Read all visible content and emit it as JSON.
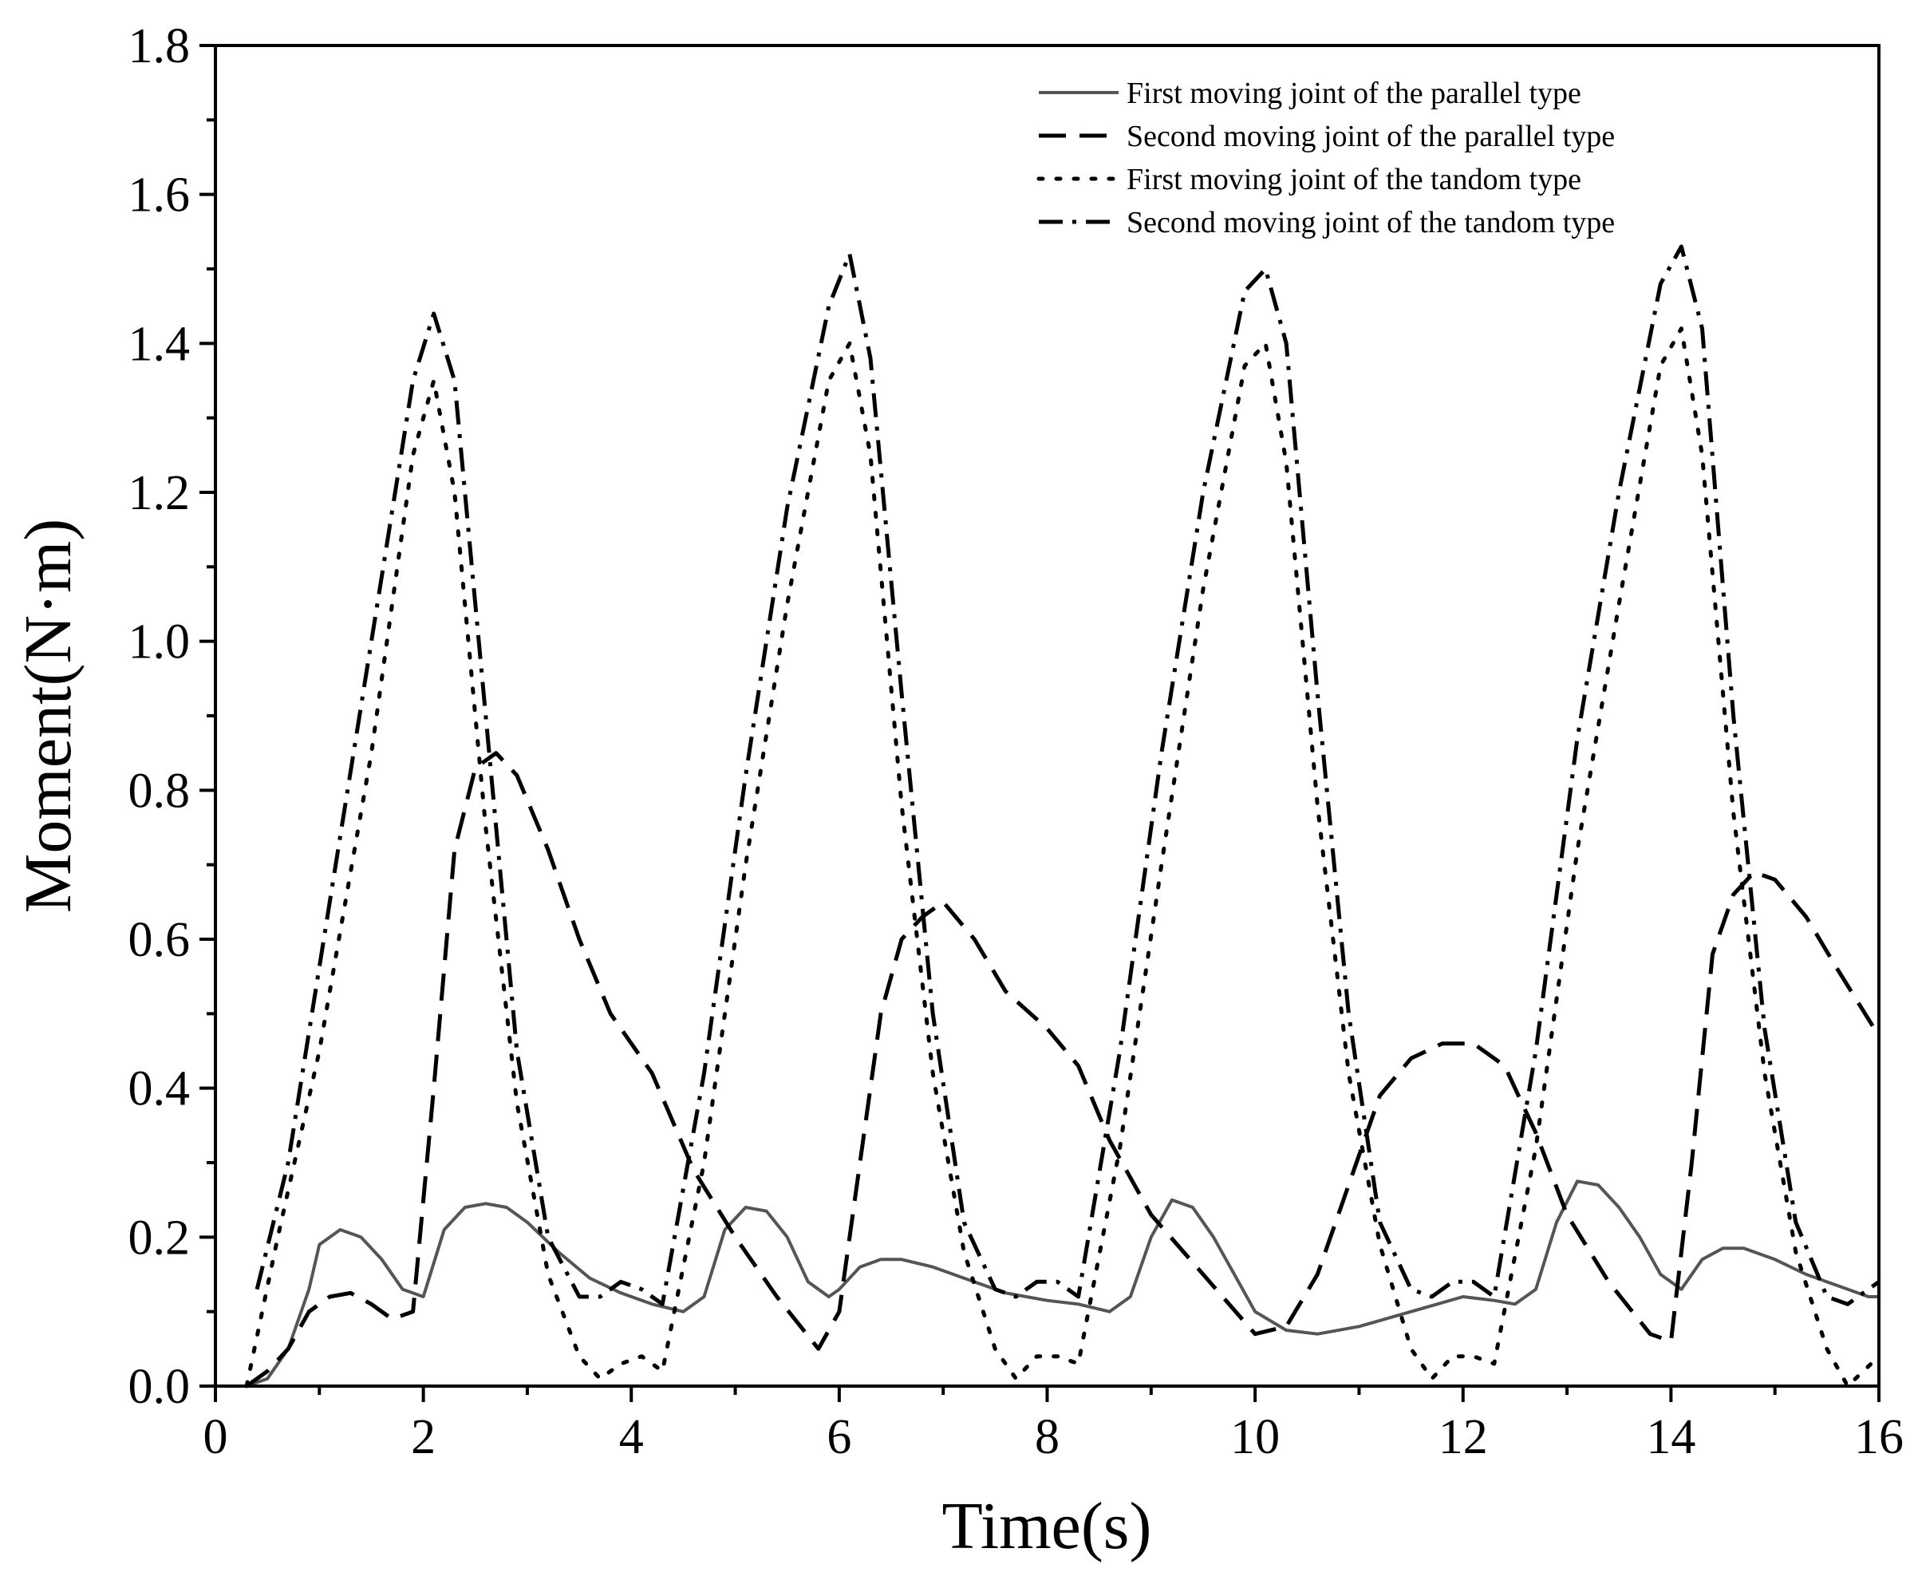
{
  "chart_data": {
    "type": "line",
    "title": "",
    "xlabel": "Time(s)",
    "ylabel": "Moment(N·m)",
    "xlim": [
      0,
      16
    ],
    "ylim": [
      0,
      1.8
    ],
    "xticks": [
      0,
      2,
      4,
      6,
      8,
      10,
      12,
      14,
      16
    ],
    "yticks": [
      0.0,
      0.2,
      0.4,
      0.6,
      0.8,
      1.0,
      1.2,
      1.4,
      1.6,
      1.8
    ],
    "xtick_labels": [
      "0",
      "2",
      "4",
      "6",
      "8",
      "10",
      "12",
      "14",
      "16"
    ],
    "ytick_labels": [
      "0.0",
      "0.2",
      "0.4",
      "0.6",
      "0.8",
      "1.0",
      "1.2",
      "1.4",
      "1.6",
      "1.8"
    ],
    "grid": false,
    "legend_position": "top-right",
    "series": [
      {
        "name": "First moving joint of the parallel type",
        "style": "solid",
        "color": "#555555",
        "x": [
          0.3,
          0.5,
          0.7,
          0.9,
          1.0,
          1.2,
          1.4,
          1.6,
          1.8,
          2.0,
          2.2,
          2.4,
          2.6,
          2.8,
          3.0,
          3.3,
          3.6,
          3.9,
          4.2,
          4.5,
          4.7,
          4.9,
          5.1,
          5.3,
          5.5,
          5.7,
          5.9,
          6.0,
          6.2,
          6.4,
          6.6,
          6.9,
          7.2,
          7.6,
          8.0,
          8.3,
          8.6,
          8.8,
          9.0,
          9.2,
          9.4,
          9.6,
          9.8,
          10.0,
          10.3,
          10.6,
          11.0,
          11.5,
          12.0,
          12.3,
          12.5,
          12.7,
          12.9,
          13.1,
          13.3,
          13.5,
          13.7,
          13.9,
          14.1,
          14.3,
          14.5,
          14.7,
          15.0,
          15.3,
          15.6,
          15.9,
          16.0
        ],
        "y": [
          0.0,
          0.01,
          0.05,
          0.13,
          0.19,
          0.21,
          0.2,
          0.17,
          0.13,
          0.12,
          0.21,
          0.24,
          0.245,
          0.24,
          0.22,
          0.18,
          0.145,
          0.125,
          0.11,
          0.1,
          0.12,
          0.21,
          0.24,
          0.235,
          0.2,
          0.14,
          0.12,
          0.13,
          0.16,
          0.17,
          0.17,
          0.16,
          0.145,
          0.125,
          0.115,
          0.11,
          0.1,
          0.12,
          0.2,
          0.25,
          0.24,
          0.2,
          0.15,
          0.1,
          0.075,
          0.07,
          0.08,
          0.1,
          0.12,
          0.115,
          0.11,
          0.13,
          0.22,
          0.275,
          0.27,
          0.24,
          0.2,
          0.15,
          0.13,
          0.17,
          0.185,
          0.185,
          0.17,
          0.15,
          0.135,
          0.12,
          0.12
        ]
      },
      {
        "name": "Second moving joint of the parallel type",
        "style": "dashed",
        "color": "#000000",
        "x": [
          0.3,
          0.5,
          0.7,
          0.9,
          1.1,
          1.3,
          1.5,
          1.7,
          1.9,
          2.1,
          2.3,
          2.5,
          2.7,
          2.9,
          3.2,
          3.5,
          3.8,
          4.2,
          4.6,
          5.0,
          5.4,
          5.8,
          6.0,
          6.2,
          6.4,
          6.6,
          6.8,
          7.0,
          7.3,
          7.6,
          8.0,
          8.3,
          8.6,
          9.0,
          9.5,
          10.0,
          10.3,
          10.6,
          10.9,
          11.2,
          11.5,
          11.8,
          12.1,
          12.4,
          12.7,
          13.0,
          13.4,
          13.8,
          14.0,
          14.2,
          14.4,
          14.6,
          14.8,
          15.0,
          15.3,
          15.6,
          16.0
        ],
        "y": [
          0.0,
          0.02,
          0.05,
          0.1,
          0.12,
          0.125,
          0.11,
          0.09,
          0.1,
          0.4,
          0.72,
          0.83,
          0.85,
          0.82,
          0.72,
          0.6,
          0.5,
          0.42,
          0.29,
          0.2,
          0.12,
          0.05,
          0.1,
          0.3,
          0.5,
          0.6,
          0.63,
          0.65,
          0.6,
          0.53,
          0.48,
          0.43,
          0.33,
          0.23,
          0.15,
          0.07,
          0.08,
          0.15,
          0.27,
          0.39,
          0.44,
          0.46,
          0.46,
          0.43,
          0.34,
          0.23,
          0.14,
          0.07,
          0.06,
          0.3,
          0.58,
          0.66,
          0.69,
          0.68,
          0.63,
          0.56,
          0.47
        ]
      },
      {
        "name": "First moving joint of the tandom type",
        "style": "dotted",
        "color": "#000000",
        "x": [
          0.3,
          0.6,
          1.0,
          1.5,
          1.9,
          2.1,
          2.3,
          2.6,
          2.9,
          3.2,
          3.5,
          3.7,
          3.9,
          4.1,
          4.3,
          4.7,
          5.1,
          5.5,
          5.9,
          6.1,
          6.3,
          6.6,
          6.9,
          7.2,
          7.5,
          7.7,
          7.9,
          8.1,
          8.3,
          8.7,
          9.1,
          9.5,
          9.9,
          10.1,
          10.3,
          10.6,
          10.9,
          11.2,
          11.5,
          11.7,
          11.9,
          12.1,
          12.3,
          12.7,
          13.1,
          13.5,
          13.9,
          14.1,
          14.3,
          14.6,
          14.9,
          15.2,
          15.5,
          15.7,
          16.0
        ],
        "y": [
          0.0,
          0.2,
          0.45,
          0.85,
          1.25,
          1.35,
          1.2,
          0.75,
          0.38,
          0.15,
          0.04,
          0.01,
          0.03,
          0.04,
          0.02,
          0.3,
          0.7,
          1.05,
          1.35,
          1.4,
          1.25,
          0.78,
          0.42,
          0.18,
          0.05,
          0.01,
          0.04,
          0.04,
          0.03,
          0.32,
          0.7,
          1.07,
          1.37,
          1.4,
          1.24,
          0.78,
          0.42,
          0.19,
          0.05,
          0.01,
          0.04,
          0.04,
          0.03,
          0.32,
          0.72,
          1.05,
          1.37,
          1.42,
          1.25,
          0.77,
          0.42,
          0.18,
          0.05,
          0.0,
          0.04
        ]
      },
      {
        "name": "Second moving joint of the tandom type",
        "style": "dashdot",
        "color": "#000000",
        "x": [
          0.4,
          0.7,
          1.1,
          1.5,
          1.9,
          2.1,
          2.3,
          2.6,
          2.9,
          3.2,
          3.5,
          3.7,
          3.9,
          4.1,
          4.3,
          4.7,
          5.1,
          5.5,
          5.9,
          6.1,
          6.3,
          6.6,
          6.9,
          7.2,
          7.5,
          7.7,
          7.9,
          8.1,
          8.3,
          8.7,
          9.1,
          9.5,
          9.9,
          10.1,
          10.3,
          10.6,
          10.9,
          11.2,
          11.5,
          11.7,
          11.9,
          12.1,
          12.3,
          12.7,
          13.1,
          13.5,
          13.9,
          14.1,
          14.3,
          14.6,
          14.9,
          15.2,
          15.5,
          15.7,
          16.0
        ],
        "y": [
          0.13,
          0.3,
          0.65,
          1.0,
          1.35,
          1.44,
          1.35,
          0.9,
          0.45,
          0.2,
          0.12,
          0.12,
          0.14,
          0.13,
          0.11,
          0.42,
          0.82,
          1.18,
          1.45,
          1.52,
          1.38,
          0.93,
          0.5,
          0.22,
          0.13,
          0.12,
          0.14,
          0.14,
          0.12,
          0.45,
          0.85,
          1.2,
          1.47,
          1.5,
          1.4,
          0.93,
          0.5,
          0.22,
          0.13,
          0.12,
          0.14,
          0.14,
          0.12,
          0.45,
          0.87,
          1.2,
          1.48,
          1.53,
          1.42,
          0.9,
          0.48,
          0.22,
          0.12,
          0.11,
          0.14
        ]
      }
    ]
  }
}
